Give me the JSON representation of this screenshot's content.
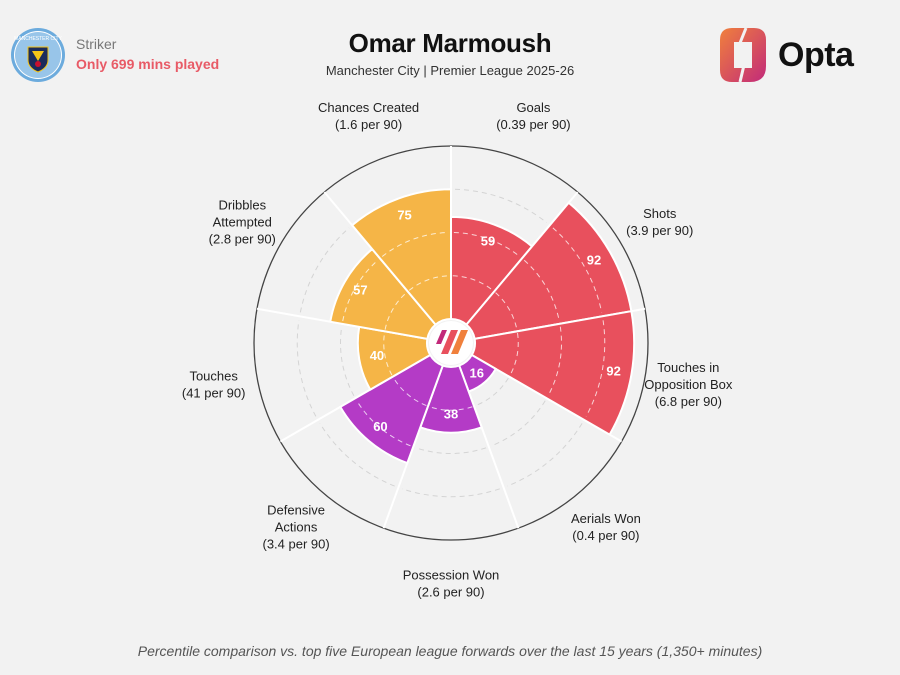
{
  "header": {
    "role": "Striker",
    "note": "Only 699 mins played",
    "title": "Omar Marmoush",
    "subtitle": "Manchester City | Premier League 2025-26",
    "brand": "Opta",
    "crest_text": "MANCHESTER CITY"
  },
  "footer": "Percentile comparison vs. top five European league forwards over the last 15 years (1,350+ minutes)",
  "colors": {
    "attacking": "#e8505d",
    "possession": "#f5b547",
    "defending": "#b43bc6",
    "background": "#f2f2f2",
    "brand_gradient_start": "#f0803c",
    "brand_gradient_end": "#c22a7a"
  },
  "chart_data": {
    "type": "polar_bar",
    "scale_max": 100,
    "metrics": [
      {
        "name": "Goals",
        "per90": "(0.39 per 90)",
        "percentile": 59,
        "group": "attacking"
      },
      {
        "name": "Shots",
        "per90": "(3.9 per 90)",
        "percentile": 92,
        "group": "attacking"
      },
      {
        "name": "Touches in Opposition Box",
        "per90": "(6.8 per 90)",
        "percentile": 92,
        "group": "attacking"
      },
      {
        "name": "Aerials Won",
        "per90": "(0.4 per 90)",
        "percentile": 16,
        "group": "defending"
      },
      {
        "name": "Possession Won",
        "per90": "(2.6 per 90)",
        "percentile": 38,
        "group": "defending"
      },
      {
        "name": "Defensive Actions",
        "per90": "(3.4 per 90)",
        "percentile": 60,
        "group": "defending"
      },
      {
        "name": "Touches",
        "per90": "(41 per 90)",
        "percentile": 40,
        "group": "possession"
      },
      {
        "name": "Dribbles Attempted",
        "per90": "(2.8 per 90)",
        "percentile": 57,
        "group": "possession"
      },
      {
        "name": "Chances Created",
        "per90": "(1.6 per 90)",
        "percentile": 75,
        "group": "possession"
      }
    ]
  }
}
